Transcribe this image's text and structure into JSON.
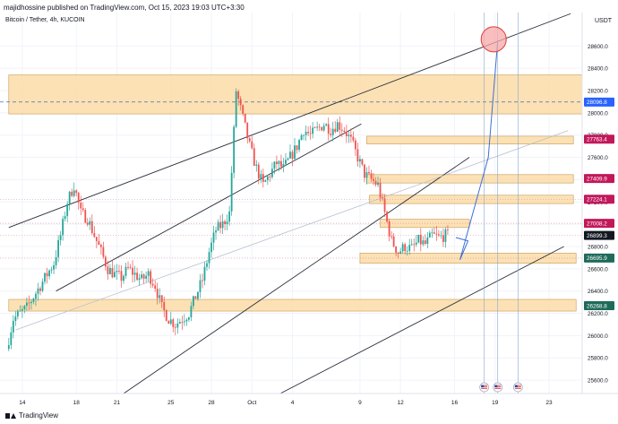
{
  "header": {
    "text": "majidhossine published on TradingView.com, Oct 15, 2023 19:03 UTC+3:30"
  },
  "symbol": {
    "text": "Bitcoin / Tether, 4h, KUCOIN"
  },
  "currency": "USDT",
  "footer": {
    "logo_text": "TradingView"
  },
  "colors": {
    "up": "#26a69a",
    "down": "#ef5350",
    "zone_fill": "#fbdca8",
    "zone_stroke": "#c79a55",
    "channel": "#2a2e39",
    "projection": "#3d6fd8",
    "target_circle": "#f7a8a8",
    "target_stroke": "#e03b3b",
    "price_blue": "#2962ff",
    "price_pink": "#c2185b",
    "price_green": "#1e6b5b",
    "price_dark": "#131722"
  },
  "chart_data": {
    "type": "candlestick",
    "title": "Bitcoin / Tether, 4h, KUCOIN",
    "y_axis": {
      "side": "right",
      "range": [
        25480,
        28900
      ],
      "ticks": [
        25600,
        25800,
        26000,
        26200,
        26400,
        26600,
        26800,
        27000,
        27200,
        27400,
        27600,
        27800,
        28000,
        28200,
        28400,
        28600
      ]
    },
    "x_axis": {
      "ticks": [
        {
          "label": "14",
          "day": 14
        },
        {
          "label": "18",
          "day": 18
        },
        {
          "label": "21",
          "day": 21
        },
        {
          "label": "25",
          "day": 25
        },
        {
          "label": "28",
          "day": 28
        },
        {
          "label": "Oct",
          "day": 31
        },
        {
          "label": "4",
          "day": 34
        },
        {
          "label": "9",
          "day": 39
        },
        {
          "label": "12",
          "day": 42
        },
        {
          "label": "16",
          "day": 46
        },
        {
          "label": "19",
          "day": 49
        },
        {
          "label": "23",
          "day": 53
        }
      ]
    },
    "price_series": [
      [
        13.0,
        25880
      ],
      [
        13.5,
        26150
      ],
      [
        14.0,
        26200
      ],
      [
        14.5,
        26250
      ],
      [
        15.0,
        26350
      ],
      [
        15.5,
        26450
      ],
      [
        16.0,
        26550
      ],
      [
        16.5,
        26650
      ],
      [
        17.0,
        26900
      ],
      [
        17.5,
        27200
      ],
      [
        18.0,
        27350
      ],
      [
        18.5,
        27100
      ],
      [
        19.0,
        27050
      ],
      [
        19.5,
        26900
      ],
      [
        20.0,
        26750
      ],
      [
        20.5,
        26600
      ],
      [
        21.0,
        26550
      ],
      [
        21.5,
        26520
      ],
      [
        22.0,
        26600
      ],
      [
        22.5,
        26550
      ],
      [
        23.0,
        26500
      ],
      [
        23.5,
        26550
      ],
      [
        24.0,
        26450
      ],
      [
        24.5,
        26250
      ],
      [
        25.0,
        26150
      ],
      [
        25.5,
        26100
      ],
      [
        26.0,
        26150
      ],
      [
        26.5,
        26200
      ],
      [
        27.0,
        26350
      ],
      [
        27.5,
        26500
      ],
      [
        28.0,
        26750
      ],
      [
        28.5,
        26950
      ],
      [
        29.0,
        27000
      ],
      [
        29.5,
        27100
      ],
      [
        30.0,
        28200
      ],
      [
        30.5,
        27950
      ],
      [
        31.0,
        27700
      ],
      [
        31.5,
        27500
      ],
      [
        32.0,
        27350
      ],
      [
        32.5,
        27450
      ],
      [
        33.0,
        27550
      ],
      [
        33.5,
        27500
      ],
      [
        34.0,
        27600
      ],
      [
        34.5,
        27700
      ],
      [
        35.0,
        27850
      ],
      [
        35.5,
        27800
      ],
      [
        36.0,
        27850
      ],
      [
        36.5,
        27900
      ],
      [
        37.0,
        27850
      ],
      [
        37.5,
        27900
      ],
      [
        38.0,
        27850
      ],
      [
        38.5,
        27750
      ],
      [
        39.0,
        27600
      ],
      [
        39.5,
        27450
      ],
      [
        40.0,
        27400
      ],
      [
        40.5,
        27350
      ],
      [
        41.0,
        27100
      ],
      [
        41.5,
        26850
      ],
      [
        42.0,
        26750
      ],
      [
        42.5,
        26800
      ],
      [
        43.0,
        26780
      ],
      [
        43.5,
        26850
      ],
      [
        44.0,
        26820
      ],
      [
        44.5,
        26900
      ],
      [
        45.0,
        26880
      ],
      [
        45.5,
        26900
      ]
    ],
    "zones": [
      {
        "price_from": 27990,
        "price_to": 28340,
        "x_start": 13.0,
        "x_end": 55.6
      },
      {
        "price_from": 27720,
        "price_to": 27790,
        "x_start": 39.5,
        "x_end": 54.8
      },
      {
        "price_from": 27370,
        "price_to": 27445,
        "x_start": 39.5,
        "x_end": 54.8
      },
      {
        "price_from": 27185,
        "price_to": 27260,
        "x_start": 39.7,
        "x_end": 54.8
      },
      {
        "price_from": 26970,
        "price_to": 27045,
        "x_start": 40.5,
        "x_end": 47.1
      },
      {
        "price_from": 26650,
        "price_to": 26740,
        "x_start": 39.0,
        "x_end": 55.0
      },
      {
        "price_from": 26220,
        "price_to": 26325,
        "x_start": 13.0,
        "x_end": 55.0
      }
    ],
    "horizontal_lines": [
      {
        "price": 28096.8,
        "style": "dashed"
      },
      {
        "price": 26899.3,
        "style": "dotted"
      },
      {
        "price": 27008.2,
        "style": "dotted"
      },
      {
        "price": 27224.1,
        "style": "dotted"
      },
      {
        "price": 26695.9,
        "style": "dotted"
      }
    ],
    "channel_lines": [
      {
        "from": [
          13.0,
          26970
        ],
        "to": [
          54.6,
          28890
        ]
      },
      {
        "from": [
          16.5,
          26400
        ],
        "to": [
          39.1,
          27900
        ]
      },
      {
        "from": [
          21.5,
          25480
        ],
        "to": [
          47.1,
          27600
        ]
      },
      {
        "from": [
          33.1,
          25480
        ],
        "to": [
          54.1,
          26800
        ]
      },
      {
        "from": [
          13.5,
          26050
        ],
        "to": [
          54.4,
          27840
        ]
      }
    ],
    "projection_path": [
      [
        46.1,
        26880
      ],
      [
        47.0,
        26850
      ],
      [
        46.4,
        26680
      ],
      [
        48.5,
        27600
      ],
      [
        49.2,
        28650
      ]
    ],
    "target_circle": {
      "x": 48.9,
      "price": 28660
    },
    "vertical_lines": [
      48.2,
      49.2,
      50.7
    ],
    "event_markers": [
      48.2,
      49.2,
      50.7
    ],
    "price_labels": [
      {
        "price": 28096.8,
        "label": "28096.8",
        "color_key": "price_blue"
      },
      {
        "price": 27763.4,
        "label": "27763.4",
        "color_key": "price_pink"
      },
      {
        "price": 27409.9,
        "label": "27409.9",
        "color_key": "price_pink"
      },
      {
        "price": 27224.1,
        "label": "27224.1",
        "color_key": "price_pink"
      },
      {
        "price": 27008.2,
        "label": "27008.2",
        "color_key": "price_pink"
      },
      {
        "price": 26899.3,
        "label": "26899.3",
        "color_key": "price_dark"
      },
      {
        "price": 26695.9,
        "label": "26695.9",
        "color_key": "price_green"
      },
      {
        "price": 26268.8,
        "label": "26268.8",
        "color_key": "price_green"
      }
    ]
  }
}
